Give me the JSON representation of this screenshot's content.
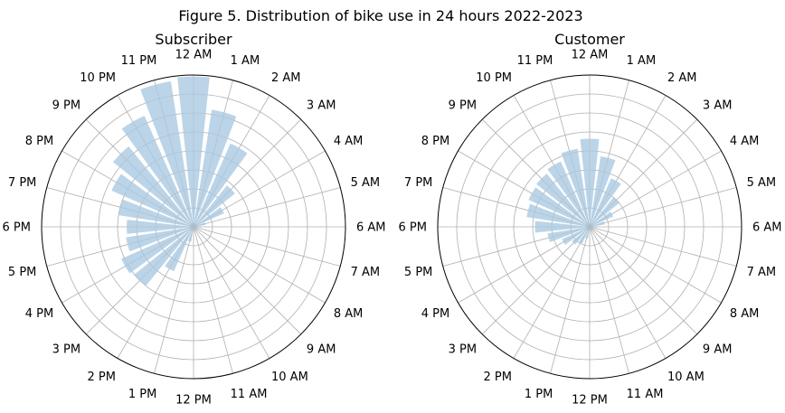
{
  "figure": {
    "title": "Figure 5. Distribution of bike use in 24 hours 2022-2023"
  },
  "chart_data": [
    {
      "type": "bar",
      "projection": "polar",
      "title": "Subscriber",
      "theta_direction": "clockwise",
      "theta_zero": "top",
      "categories": [
        "12 AM",
        "1 AM",
        "2 AM",
        "3 AM",
        "4 AM",
        "5 AM",
        "6 AM",
        "7 AM",
        "8 AM",
        "9 AM",
        "10 AM",
        "11 AM",
        "12 PM",
        "1 PM",
        "2 PM",
        "3 PM",
        "4 PM",
        "5 PM",
        "6 PM",
        "7 PM",
        "8 PM",
        "9 PM",
        "10 PM",
        "11 PM"
      ],
      "values": [
        0.99,
        0.78,
        0.6,
        0.35,
        0.22,
        0.08,
        0.05,
        0.02,
        0.02,
        0.02,
        0.02,
        0.02,
        0.03,
        0.1,
        0.32,
        0.5,
        0.52,
        0.45,
        0.44,
        0.5,
        0.59,
        0.68,
        0.8,
        0.97
      ],
      "rlim": [
        0,
        1
      ],
      "r_grid_count": 8,
      "grid": true,
      "bar_color": "#aac9e1"
    },
    {
      "type": "bar",
      "projection": "polar",
      "title": "Customer",
      "theta_direction": "clockwise",
      "theta_zero": "top",
      "categories": [
        "12 AM",
        "1 AM",
        "2 AM",
        "3 AM",
        "4 AM",
        "5 AM",
        "6 AM",
        "7 AM",
        "8 AM",
        "9 AM",
        "10 AM",
        "11 AM",
        "12 PM",
        "1 PM",
        "2 PM",
        "3 PM",
        "4 PM",
        "5 PM",
        "6 PM",
        "7 PM",
        "8 PM",
        "9 PM",
        "10 PM",
        "11 PM"
      ],
      "values": [
        0.58,
        0.47,
        0.35,
        0.25,
        0.17,
        0.1,
        0.05,
        0.02,
        0.02,
        0.02,
        0.02,
        0.02,
        0.04,
        0.08,
        0.12,
        0.15,
        0.2,
        0.28,
        0.36,
        0.42,
        0.44,
        0.45,
        0.47,
        0.52
      ],
      "rlim": [
        0,
        1
      ],
      "r_grid_count": 8,
      "grid": true,
      "bar_color": "#aac9e1"
    }
  ]
}
